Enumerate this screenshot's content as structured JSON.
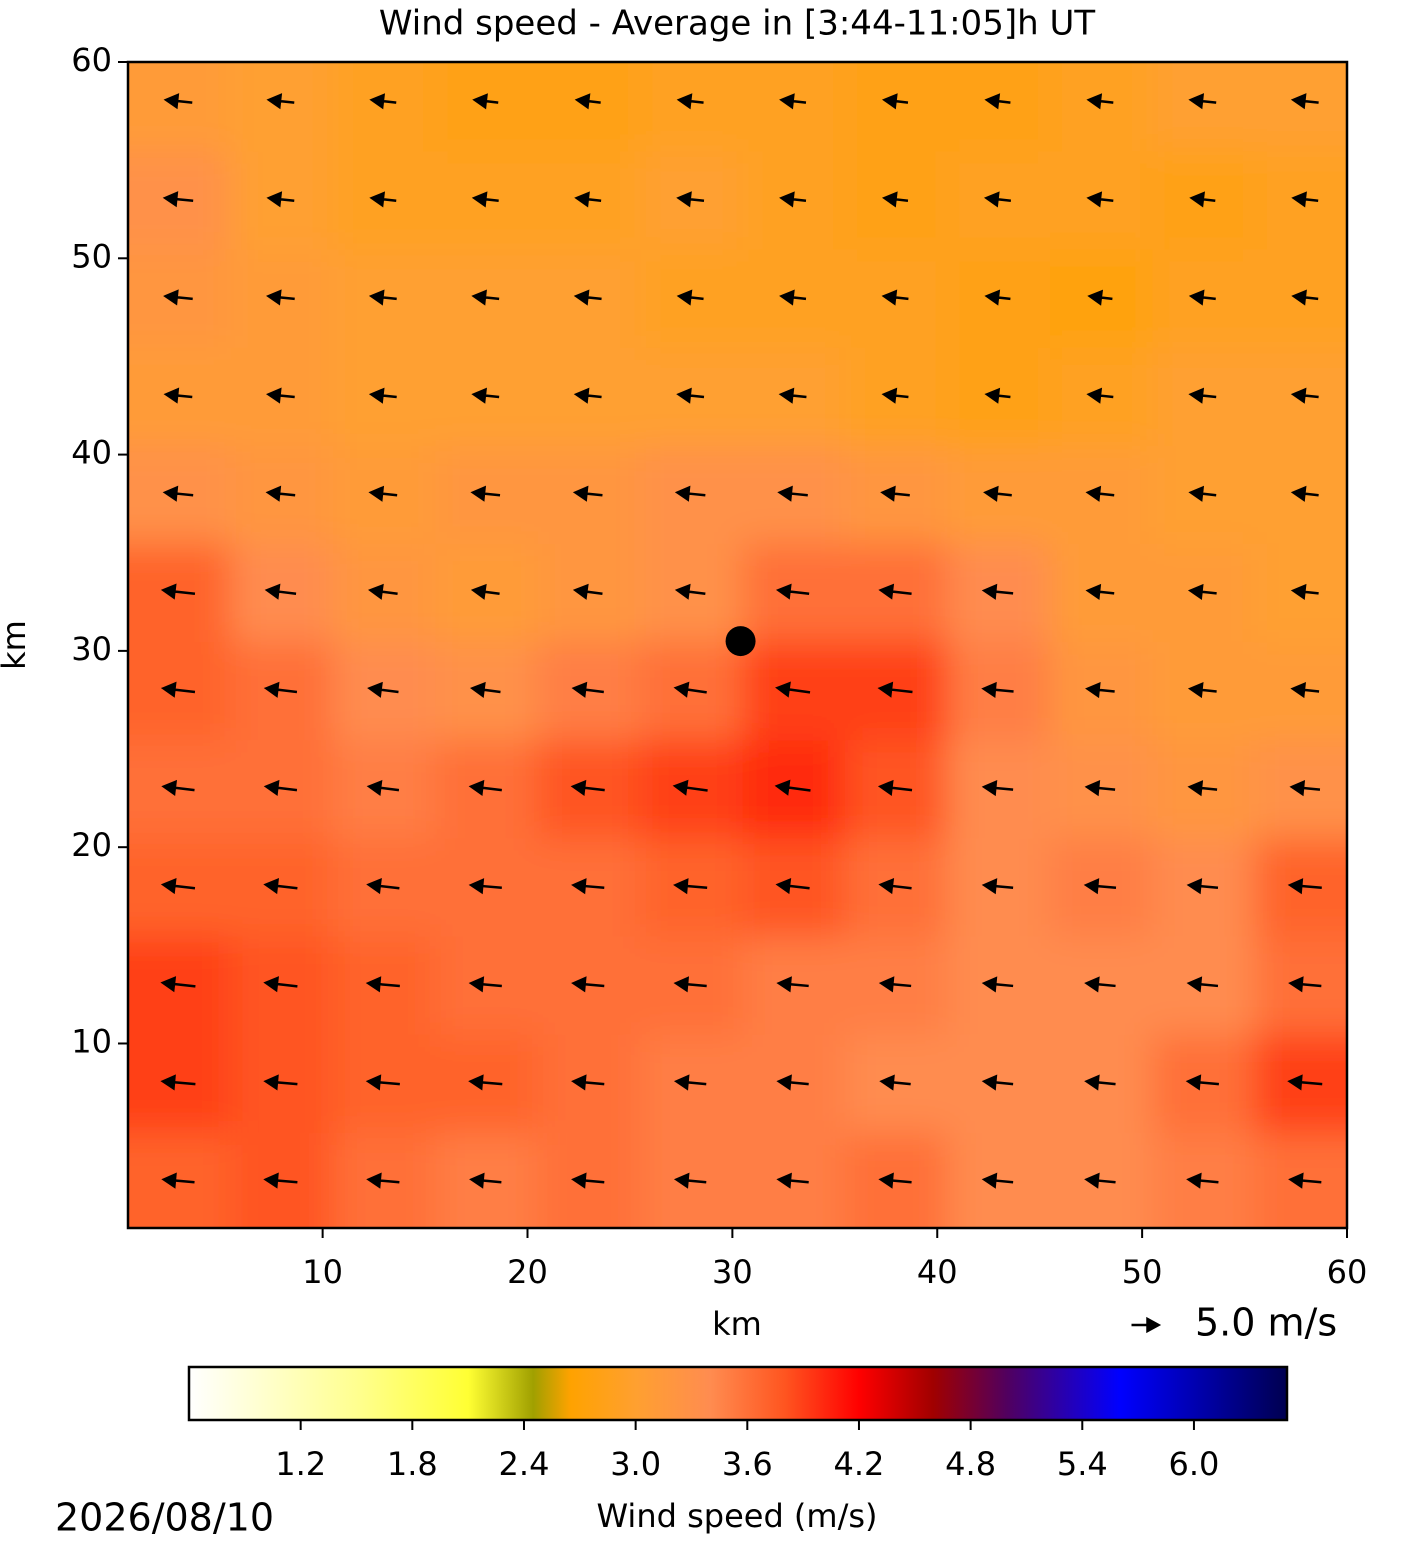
{
  "chart_data": {
    "type": "heatmap",
    "title": "Wind speed - Average in [3:44-11:05]h UT",
    "xlabel": "km",
    "ylabel": "km",
    "xlim": [
      0.5,
      60
    ],
    "ylim": [
      0.6,
      60
    ],
    "xticks": [
      10,
      20,
      30,
      40,
      50,
      60
    ],
    "yticks": [
      10,
      20,
      30,
      40,
      50,
      60
    ],
    "heatmap": {
      "x": [
        3,
        8,
        13,
        18,
        23,
        28,
        33,
        38,
        43,
        48,
        53,
        58
      ],
      "y": [
        3,
        8,
        13,
        18,
        23,
        28,
        33,
        38,
        43,
        48,
        53,
        58
      ],
      "z": [
        [
          3.7,
          3.8,
          3.6,
          3.5,
          3.6,
          3.5,
          3.5,
          3.6,
          3.4,
          3.4,
          3.5,
          3.6
        ],
        [
          3.9,
          3.8,
          3.7,
          3.7,
          3.6,
          3.5,
          3.5,
          3.4,
          3.4,
          3.4,
          3.6,
          3.9
        ],
        [
          3.9,
          3.8,
          3.7,
          3.6,
          3.6,
          3.6,
          3.5,
          3.5,
          3.4,
          3.4,
          3.4,
          3.6
        ],
        [
          3.7,
          3.7,
          3.6,
          3.6,
          3.6,
          3.7,
          3.8,
          3.6,
          3.4,
          3.5,
          3.4,
          3.7
        ],
        [
          3.6,
          3.6,
          3.5,
          3.6,
          3.8,
          3.9,
          4.0,
          3.8,
          3.4,
          3.3,
          3.2,
          3.3
        ],
        [
          3.7,
          3.6,
          3.4,
          3.3,
          3.5,
          3.6,
          3.9,
          3.9,
          3.5,
          3.2,
          3.1,
          3.1
        ],
        [
          3.7,
          3.4,
          3.2,
          3.1,
          3.2,
          3.3,
          3.6,
          3.6,
          3.4,
          3.1,
          3.1,
          3.0
        ],
        [
          3.3,
          3.2,
          3.1,
          3.2,
          3.2,
          3.3,
          3.3,
          3.2,
          3.1,
          3.1,
          3.0,
          3.0
        ],
        [
          3.1,
          3.1,
          3.0,
          3.0,
          3.0,
          3.0,
          3.0,
          2.9,
          2.8,
          2.9,
          3.0,
          3.0
        ],
        [
          3.2,
          3.1,
          3.0,
          3.0,
          3.0,
          2.9,
          2.9,
          2.9,
          2.8,
          2.7,
          2.9,
          2.9
        ],
        [
          3.3,
          3.0,
          2.9,
          2.9,
          2.9,
          3.0,
          2.9,
          2.8,
          2.9,
          2.9,
          2.8,
          2.9
        ],
        [
          3.1,
          3.0,
          2.9,
          2.8,
          2.8,
          2.9,
          2.9,
          2.8,
          2.8,
          2.9,
          3.0,
          3.0
        ]
      ]
    },
    "quiver": {
      "x": [
        3,
        8,
        13,
        18,
        23,
        28,
        33,
        38,
        43,
        48,
        53,
        58
      ],
      "y": [
        3,
        8,
        13,
        18,
        23,
        28,
        33,
        38,
        43,
        48,
        53,
        58
      ],
      "u": [
        [
          -3.4,
          -3.5,
          -3.4,
          -3.3,
          -3.4,
          -3.3,
          -3.3,
          -3.4,
          -3.2,
          -3.2,
          -3.3,
          -3.4
        ],
        [
          -3.6,
          -3.5,
          -3.5,
          -3.5,
          -3.4,
          -3.3,
          -3.3,
          -3.2,
          -3.2,
          -3.2,
          -3.4,
          -3.6
        ],
        [
          -3.6,
          -3.5,
          -3.5,
          -3.4,
          -3.4,
          -3.4,
          -3.3,
          -3.3,
          -3.2,
          -3.2,
          -3.2,
          -3.4
        ],
        [
          -3.5,
          -3.5,
          -3.4,
          -3.4,
          -3.4,
          -3.5,
          -3.5,
          -3.4,
          -3.2,
          -3.3,
          -3.2,
          -3.5
        ],
        [
          -3.4,
          -3.4,
          -3.3,
          -3.4,
          -3.5,
          -3.6,
          -3.7,
          -3.5,
          -3.2,
          -3.1,
          -3.0,
          -3.1
        ],
        [
          -3.5,
          -3.4,
          -3.2,
          -3.1,
          -3.3,
          -3.4,
          -3.6,
          -3.6,
          -3.3,
          -3.0,
          -2.9,
          -2.9
        ],
        [
          -3.5,
          -3.2,
          -3.0,
          -2.9,
          -3.0,
          -3.1,
          -3.4,
          -3.4,
          -3.2,
          -2.9,
          -2.9,
          -2.8
        ],
        [
          -3.1,
          -3.0,
          -2.9,
          -3.0,
          -3.0,
          -3.1,
          -3.1,
          -3.0,
          -2.9,
          -2.9,
          -2.8,
          -2.8
        ],
        [
          -2.9,
          -2.9,
          -2.8,
          -2.8,
          -2.8,
          -2.8,
          -2.8,
          -2.7,
          -2.6,
          -2.7,
          -2.8,
          -2.8
        ],
        [
          -3.0,
          -2.9,
          -2.8,
          -2.8,
          -2.8,
          -2.7,
          -2.7,
          -2.7,
          -2.6,
          -2.5,
          -2.7,
          -2.7
        ],
        [
          -3.1,
          -2.8,
          -2.7,
          -2.7,
          -2.7,
          -2.8,
          -2.7,
          -2.6,
          -2.7,
          -2.7,
          -2.6,
          -2.7
        ],
        [
          -2.9,
          -2.8,
          -2.7,
          -2.6,
          -2.6,
          -2.7,
          -2.7,
          -2.6,
          -2.6,
          -2.7,
          -2.8,
          -2.8
        ]
      ],
      "v": [
        [
          0.3,
          0.3,
          0.3,
          0.3,
          0.3,
          0.3,
          0.3,
          0.3,
          0.3,
          0.3,
          0.3,
          0.3
        ],
        [
          0.3,
          0.3,
          0.3,
          0.3,
          0.3,
          0.3,
          0.3,
          0.3,
          0.3,
          0.3,
          0.3,
          0.3
        ],
        [
          0.4,
          0.4,
          0.3,
          0.3,
          0.3,
          0.3,
          0.3,
          0.3,
          0.3,
          0.3,
          0.3,
          0.3
        ],
        [
          0.4,
          0.4,
          0.4,
          0.3,
          0.3,
          0.3,
          0.4,
          0.4,
          0.3,
          0.3,
          0.3,
          0.3
        ],
        [
          0.4,
          0.4,
          0.4,
          0.4,
          0.4,
          0.5,
          0.5,
          0.4,
          0.3,
          0.3,
          0.3,
          0.3
        ],
        [
          0.4,
          0.4,
          0.4,
          0.4,
          0.4,
          0.5,
          0.5,
          0.4,
          0.3,
          0.3,
          0.3,
          0.3
        ],
        [
          0.4,
          0.4,
          0.4,
          0.4,
          0.4,
          0.4,
          0.4,
          0.4,
          0.3,
          0.3,
          0.3,
          0.3
        ],
        [
          0.3,
          0.3,
          0.3,
          0.3,
          0.3,
          0.3,
          0.3,
          0.3,
          0.3,
          0.3,
          0.3,
          0.3
        ],
        [
          0.3,
          0.3,
          0.3,
          0.3,
          0.3,
          0.3,
          0.3,
          0.3,
          0.3,
          0.3,
          0.3,
          0.3
        ],
        [
          0.3,
          0.3,
          0.3,
          0.3,
          0.3,
          0.3,
          0.3,
          0.3,
          0.3,
          0.3,
          0.3,
          0.3
        ],
        [
          0.3,
          0.3,
          0.3,
          0.3,
          0.3,
          0.3,
          0.3,
          0.3,
          0.3,
          0.3,
          0.3,
          0.3
        ],
        [
          0.3,
          0.3,
          0.3,
          0.3,
          0.3,
          0.3,
          0.3,
          0.3,
          0.3,
          0.3,
          0.3,
          0.3
        ]
      ],
      "color": "#000000"
    },
    "quiver_key": {
      "u": 5.0,
      "label": "5.0 m/s"
    },
    "marker": {
      "x": 30.4,
      "y": 30.5,
      "color": "#000000"
    },
    "colorbar": {
      "label": "Wind speed (m/s)",
      "clim": [
        0.6,
        6.5
      ],
      "ticks": [
        1.2,
        1.8,
        2.4,
        {
          "value": 3,
          "label": "3.0"
        },
        3.6,
        4.2,
        4.8,
        5.4,
        {
          "value": 6,
          "label": "6.0"
        }
      ],
      "colormap": [
        {
          "value": 0.6,
          "color": "#ffffff"
        },
        {
          "value": 1.5,
          "color": "#ffff90"
        },
        {
          "value": 2.1,
          "color": "#ffff33"
        },
        {
          "value": 2.45,
          "color": "#a0a000"
        },
        {
          "value": 2.65,
          "color": "#ffa200"
        },
        {
          "value": 3.0,
          "color": "#ffa030"
        },
        {
          "value": 3.4,
          "color": "#ff8c50"
        },
        {
          "value": 3.8,
          "color": "#ff5520"
        },
        {
          "value": 4.2,
          "color": "#ff0000"
        },
        {
          "value": 4.6,
          "color": "#a00000"
        },
        {
          "value": 5.0,
          "color": "#500060"
        },
        {
          "value": 5.6,
          "color": "#0000ff"
        },
        {
          "value": 6.5,
          "color": "#000050"
        }
      ]
    },
    "date": "2026/08/10"
  }
}
